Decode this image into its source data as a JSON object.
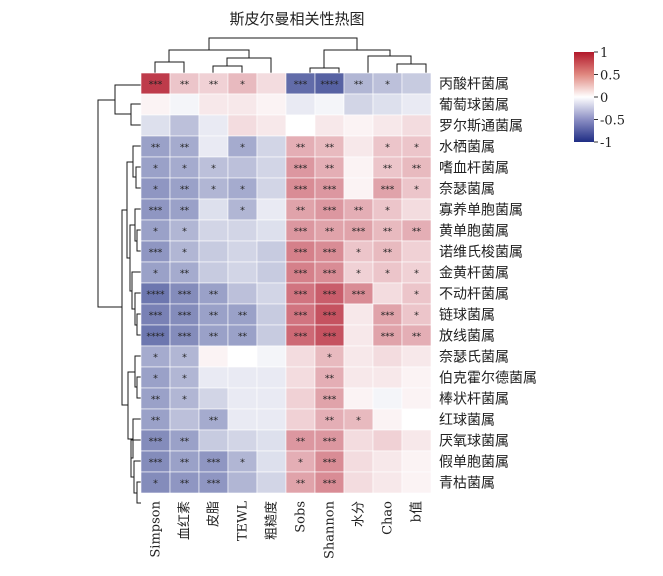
{
  "chart_data": {
    "type": "heatmap",
    "title": "斯皮尔曼相关性热图",
    "columns": [
      "Simpson",
      "血红素",
      "皮脂",
      "TEWL",
      "粗糙度",
      "Sobs",
      "Shannon",
      "水分",
      "Chao",
      "b值"
    ],
    "rows": [
      "丙酸杆菌属",
      "葡萄球菌属",
      "罗尔斯通菌属",
      "水栖菌属",
      "嗜血杆菌属",
      "奈瑟菌属",
      "寡养单胞菌属",
      "黄单胞菌属",
      "诺维氏梭菌属",
      "金黄杆菌属",
      "不动杆菌属",
      "链球菌属",
      "放线菌属",
      "奈瑟氏菌属",
      "伯克霍尔德菌属",
      "棒状杆菌属",
      "红球菌属",
      "厌氧球菌属",
      "假单胞菌属",
      "青枯菌属"
    ],
    "values": [
      [
        0.85,
        0.25,
        0.2,
        0.3,
        0.15,
        -0.7,
        -0.75,
        -0.35,
        -0.3,
        -0.25
      ],
      [
        0.05,
        -0.05,
        0.1,
        0.1,
        0.05,
        -0.1,
        -0.05,
        -0.2,
        -0.15,
        -0.1
      ],
      [
        -0.15,
        -0.3,
        -0.1,
        0.15,
        0.1,
        0.0,
        0.1,
        0.05,
        0.1,
        0.15
      ],
      [
        -0.45,
        -0.4,
        -0.1,
        -0.4,
        -0.2,
        0.35,
        0.3,
        0.1,
        0.25,
        0.25
      ],
      [
        -0.45,
        -0.4,
        -0.3,
        -0.3,
        -0.2,
        0.45,
        0.35,
        0.05,
        0.25,
        0.3
      ],
      [
        -0.5,
        -0.45,
        -0.35,
        -0.4,
        -0.2,
        0.5,
        0.45,
        0.05,
        0.4,
        0.25
      ],
      [
        -0.5,
        -0.45,
        -0.15,
        -0.35,
        -0.1,
        0.4,
        0.45,
        0.35,
        0.25,
        0.15
      ],
      [
        -0.45,
        -0.35,
        -0.2,
        -0.2,
        -0.15,
        0.45,
        0.4,
        0.4,
        0.3,
        0.35
      ],
      [
        -0.5,
        -0.35,
        -0.25,
        -0.2,
        -0.25,
        0.55,
        0.5,
        0.25,
        0.3,
        0.2
      ],
      [
        -0.45,
        -0.4,
        -0.25,
        -0.2,
        -0.25,
        0.55,
        0.5,
        0.2,
        0.25,
        0.2
      ],
      [
        -0.65,
        -0.55,
        -0.45,
        -0.3,
        -0.2,
        0.6,
        0.7,
        0.5,
        0.15,
        0.25
      ],
      [
        -0.6,
        -0.55,
        -0.45,
        -0.45,
        -0.25,
        0.6,
        0.75,
        0.1,
        0.4,
        0.25
      ],
      [
        -0.65,
        -0.55,
        -0.45,
        -0.45,
        -0.25,
        0.65,
        0.75,
        0.1,
        0.4,
        0.35
      ],
      [
        -0.4,
        -0.35,
        0.05,
        0.0,
        -0.05,
        0.15,
        0.3,
        0.1,
        0.15,
        0.1
      ],
      [
        -0.45,
        -0.35,
        -0.1,
        -0.1,
        -0.1,
        0.15,
        0.35,
        0.1,
        0.1,
        0.05
      ],
      [
        -0.45,
        -0.35,
        -0.2,
        -0.1,
        -0.1,
        0.2,
        0.4,
        0.05,
        -0.05,
        0.05
      ],
      [
        -0.45,
        -0.3,
        -0.4,
        -0.1,
        -0.1,
        0.2,
        0.35,
        0.3,
        0.05,
        0.0
      ],
      [
        -0.55,
        -0.45,
        -0.25,
        -0.2,
        -0.15,
        0.45,
        0.45,
        0.15,
        0.2,
        0.1
      ],
      [
        -0.55,
        -0.45,
        -0.5,
        -0.35,
        -0.15,
        0.35,
        0.5,
        0.15,
        0.1,
        0.05
      ],
      [
        -0.55,
        -0.5,
        -0.5,
        -0.35,
        -0.2,
        0.4,
        0.5,
        0.15,
        0.1,
        0.05
      ]
    ],
    "significance": [
      [
        "***",
        "**",
        "**",
        "*",
        "",
        "***",
        "****",
        "**",
        "*",
        ""
      ],
      [
        "",
        "",
        "",
        "",
        "",
        "",
        "",
        "",
        "",
        ""
      ],
      [
        "",
        "",
        "",
        "",
        "",
        "",
        "",
        "",
        "",
        ""
      ],
      [
        "**",
        "**",
        "",
        "*",
        "",
        "**",
        "**",
        "",
        "*",
        "*"
      ],
      [
        "*",
        "*",
        "*",
        "",
        "",
        "***",
        "**",
        "",
        "**",
        "**"
      ],
      [
        "*",
        "**",
        "*",
        "*",
        "",
        "***",
        "***",
        "",
        "***",
        "*"
      ],
      [
        "***",
        "**",
        "",
        "*",
        "",
        "**",
        "***",
        "**",
        "*",
        ""
      ],
      [
        "*",
        "*",
        "",
        "",
        "",
        "***",
        "**",
        "***",
        "**",
        "**"
      ],
      [
        "***",
        "*",
        "",
        "",
        "",
        "***",
        "***",
        "*",
        "**",
        ""
      ],
      [
        "*",
        "**",
        "",
        "",
        "",
        "***",
        "***",
        "*",
        "*",
        "*"
      ],
      [
        "****",
        "***",
        "**",
        "",
        "",
        "***",
        "***",
        "***",
        "",
        "*"
      ],
      [
        "***",
        "***",
        "**",
        "**",
        "",
        "***",
        "***",
        "",
        "***",
        "*"
      ],
      [
        "****",
        "***",
        "**",
        "**",
        "",
        "***",
        "***",
        "",
        "***",
        "**"
      ],
      [
        "*",
        "*",
        "",
        "",
        "",
        "",
        "*",
        "",
        "",
        ""
      ],
      [
        "*",
        "*",
        "",
        "",
        "",
        "",
        "**",
        "",
        "",
        ""
      ],
      [
        "**",
        "*",
        "",
        "",
        "",
        "",
        "***",
        "",
        "",
        ""
      ],
      [
        "**",
        "",
        "**",
        "",
        "",
        "",
        "**",
        "*",
        "",
        ""
      ],
      [
        "***",
        "**",
        "",
        "",
        "",
        "**",
        "***",
        "",
        "",
        ""
      ],
      [
        "***",
        "**",
        "***",
        "*",
        "",
        "*",
        "***",
        "",
        "",
        ""
      ],
      [
        "*",
        "**",
        "***",
        "",
        "",
        "**",
        "***",
        "",
        "",
        ""
      ]
    ],
    "colorbar": {
      "ticks": [
        1,
        0.5,
        0,
        -0.5,
        -1
      ],
      "tick_labels": [
        "1",
        "0.5",
        "0",
        "-0.5",
        "-1"
      ],
      "colors": {
        "high": "#b2182b",
        "mid": "#ffffff",
        "low": "#1f2d84"
      },
      "range": [
        -1,
        1
      ]
    },
    "dendrogram": {
      "columns": "top",
      "rows": "left"
    }
  }
}
